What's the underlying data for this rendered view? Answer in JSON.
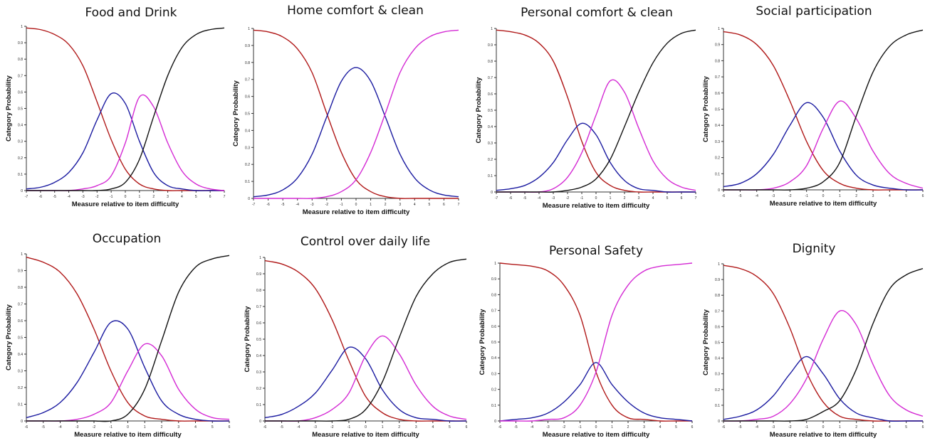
{
  "colors": {
    "cat1": "#b01818",
    "cat2": "#1a1aa0",
    "cat3": "#d42ad4",
    "cat4": "#111111"
  },
  "chart_data": [
    {
      "type": "line",
      "title": "Food and Drink",
      "xlabel": "Measure relative to item difficulty",
      "ylabel": "Category Probability",
      "xlim": [
        -7,
        7
      ],
      "ylim": [
        0,
        1
      ],
      "xticks": [
        "-7",
        "-6",
        "-5",
        "-4",
        "-3",
        "-2",
        "-1",
        "0",
        "1",
        "2",
        "3",
        "4",
        "5",
        "6",
        "7"
      ],
      "yticks": [
        "0",
        "0.1",
        "0.2",
        "0.3",
        "0.4",
        "0.5",
        "0.6",
        "0.7",
        "0.8",
        "0.9",
        "1"
      ],
      "x": [
        -7,
        -6,
        -5,
        -4,
        -3,
        -2,
        -1,
        0,
        1,
        2,
        3,
        4,
        5,
        6,
        7
      ],
      "series": [
        {
          "values": [
            0.99,
            0.98,
            0.95,
            0.89,
            0.76,
            0.54,
            0.31,
            0.13,
            0.04,
            0.01,
            0.0,
            0.0,
            0.0,
            0.0,
            0.0
          ]
        },
        {
          "values": [
            0.01,
            0.02,
            0.05,
            0.11,
            0.23,
            0.43,
            0.59,
            0.53,
            0.3,
            0.11,
            0.03,
            0.01,
            0.0,
            0.0,
            0.0
          ]
        },
        {
          "values": [
            0.0,
            0.0,
            0.0,
            0.0,
            0.01,
            0.03,
            0.09,
            0.29,
            0.57,
            0.51,
            0.29,
            0.12,
            0.04,
            0.01,
            0.0
          ]
        },
        {
          "values": [
            0.0,
            0.0,
            0.0,
            0.0,
            0.0,
            0.0,
            0.01,
            0.05,
            0.19,
            0.45,
            0.7,
            0.87,
            0.95,
            0.98,
            0.99
          ]
        }
      ]
    },
    {
      "type": "line",
      "title": "Home comfort & clean",
      "xlabel": "Measure relative to item difficulty",
      "ylabel": "Category Probability",
      "xlim": [
        -7,
        7
      ],
      "ylim": [
        0,
        1
      ],
      "xticks": [
        "-7",
        "-6",
        "-5",
        "-4",
        "-3",
        "-2",
        "-1",
        "0",
        "1",
        "2",
        "3",
        "4",
        "5",
        "6",
        "7"
      ],
      "yticks": [
        "0",
        "0.1",
        "0.2",
        "0.3",
        "0.4",
        "0.5",
        "0.6",
        "0.7",
        "0.8",
        "0.9",
        "1"
      ],
      "x": [
        -7,
        -6,
        -5,
        -4,
        -3,
        -2,
        -1,
        0,
        1,
        2,
        3,
        4,
        5,
        6,
        7
      ],
      "series": [
        {
          "values": [
            0.99,
            0.98,
            0.95,
            0.88,
            0.74,
            0.5,
            0.27,
            0.11,
            0.04,
            0.01,
            0.0,
            0.0,
            0.0,
            0.0,
            0.0
          ]
        },
        {
          "values": [
            0.01,
            0.02,
            0.05,
            0.12,
            0.26,
            0.48,
            0.69,
            0.77,
            0.69,
            0.48,
            0.26,
            0.12,
            0.05,
            0.02,
            0.01
          ]
        },
        {
          "values": [
            0.0,
            0.0,
            0.0,
            0.0,
            0.0,
            0.01,
            0.04,
            0.11,
            0.27,
            0.5,
            0.74,
            0.88,
            0.95,
            0.98,
            0.99
          ]
        }
      ]
    },
    {
      "type": "line",
      "title": "Personal comfort & clean",
      "xlabel": "Measure relative to item difficulty",
      "ylabel": "Category Probability",
      "xlim": [
        -7,
        7
      ],
      "ylim": [
        0,
        1
      ],
      "xticks": [
        "-7",
        "-6",
        "-5",
        "-4",
        "-3",
        "-2",
        "-1",
        "0",
        "1",
        "2",
        "3",
        "4",
        "5",
        "6",
        "7"
      ],
      "yticks": [
        "0",
        "0.1",
        "0.2",
        "0.3",
        "0.4",
        "0.5",
        "0.6",
        "0.7",
        "0.8",
        "0.9",
        "1"
      ],
      "x": [
        -7,
        -6,
        -5,
        -4,
        -3,
        -2,
        -1,
        0,
        1,
        2,
        3,
        4,
        5,
        6,
        7
      ],
      "series": [
        {
          "values": [
            0.99,
            0.98,
            0.96,
            0.91,
            0.8,
            0.58,
            0.31,
            0.12,
            0.04,
            0.01,
            0.0,
            0.0,
            0.0,
            0.0,
            0.0
          ]
        },
        {
          "values": [
            0.01,
            0.02,
            0.04,
            0.09,
            0.18,
            0.32,
            0.42,
            0.35,
            0.18,
            0.07,
            0.02,
            0.01,
            0.0,
            0.0,
            0.0
          ]
        },
        {
          "values": [
            0.0,
            0.0,
            0.0,
            0.0,
            0.02,
            0.09,
            0.24,
            0.47,
            0.68,
            0.61,
            0.39,
            0.19,
            0.08,
            0.03,
            0.01
          ]
        },
        {
          "values": [
            0.0,
            0.0,
            0.0,
            0.0,
            0.0,
            0.01,
            0.03,
            0.08,
            0.2,
            0.4,
            0.61,
            0.79,
            0.91,
            0.97,
            0.99
          ]
        }
      ]
    },
    {
      "type": "line",
      "title": "Social participation",
      "xlabel": "Measure relative to item difficulty",
      "ylabel": "Category Probability",
      "xlim": [
        -6,
        6
      ],
      "ylim": [
        0,
        1
      ],
      "xticks": [
        "-6",
        "-5",
        "-4",
        "-3",
        "-2",
        "-1",
        "0",
        "1",
        "2",
        "3",
        "4",
        "5",
        "6"
      ],
      "yticks": [
        "0",
        "0.1",
        "0.2",
        "0.3",
        "0.4",
        "0.5",
        "0.6",
        "0.7",
        "0.8",
        "0.9",
        "1"
      ],
      "x": [
        -6,
        -5,
        -4,
        -3,
        -2,
        -1,
        0,
        1,
        2,
        3,
        4,
        5,
        6
      ],
      "series": [
        {
          "values": [
            0.98,
            0.96,
            0.9,
            0.77,
            0.55,
            0.3,
            0.12,
            0.04,
            0.01,
            0.0,
            0.0,
            0.0,
            0.0
          ]
        },
        {
          "values": [
            0.02,
            0.04,
            0.1,
            0.22,
            0.4,
            0.54,
            0.45,
            0.24,
            0.09,
            0.03,
            0.01,
            0.0,
            0.0
          ]
        },
        {
          "values": [
            0.0,
            0.0,
            0.0,
            0.01,
            0.05,
            0.15,
            0.38,
            0.55,
            0.44,
            0.24,
            0.1,
            0.04,
            0.01
          ]
        },
        {
          "values": [
            0.0,
            0.0,
            0.0,
            0.0,
            0.0,
            0.01,
            0.05,
            0.17,
            0.46,
            0.73,
            0.89,
            0.96,
            0.99
          ]
        }
      ]
    },
    {
      "type": "line",
      "title": "Occupation",
      "xlabel": "Measure relative to item difficulty",
      "ylabel": "Category Probability",
      "xlim": [
        -6,
        6
      ],
      "ylim": [
        0,
        1
      ],
      "xticks": [
        "-6",
        "-5",
        "-4",
        "-3",
        "-2",
        "-1",
        "0",
        "1",
        "2",
        "3",
        "4",
        "5",
        "6"
      ],
      "yticks": [
        "0",
        "0.1",
        "0.2",
        "0.3",
        "0.4",
        "0.5",
        "0.6",
        "0.7",
        "0.8",
        "0.9",
        "1"
      ],
      "x": [
        -6,
        -5,
        -4,
        -3,
        -2,
        -1,
        0,
        1,
        2,
        3,
        4,
        5,
        6
      ],
      "series": [
        {
          "values": [
            0.98,
            0.95,
            0.89,
            0.76,
            0.55,
            0.3,
            0.11,
            0.03,
            0.01,
            0.0,
            0.0,
            0.0,
            0.0
          ]
        },
        {
          "values": [
            0.02,
            0.05,
            0.11,
            0.23,
            0.41,
            0.59,
            0.55,
            0.32,
            0.12,
            0.04,
            0.01,
            0.0,
            0.0
          ]
        },
        {
          "values": [
            0.0,
            0.0,
            0.0,
            0.01,
            0.04,
            0.11,
            0.3,
            0.46,
            0.39,
            0.19,
            0.07,
            0.02,
            0.01
          ]
        },
        {
          "values": [
            0.0,
            0.0,
            0.0,
            0.0,
            0.0,
            0.0,
            0.04,
            0.19,
            0.48,
            0.77,
            0.92,
            0.97,
            0.99
          ]
        }
      ]
    },
    {
      "type": "line",
      "title": "Control over daily life",
      "xlabel": "Measure relative to item difficulty",
      "ylabel": "Category Probability",
      "xlim": [
        -6,
        6
      ],
      "ylim": [
        0,
        1
      ],
      "xticks": [
        "-6",
        "-5",
        "-4",
        "-3",
        "-2",
        "-1",
        "0",
        "1",
        "2",
        "3",
        "4",
        "5",
        "6"
      ],
      "yticks": [
        "0",
        "0.1",
        "0.2",
        "0.3",
        "0.4",
        "0.5",
        "0.6",
        "0.7",
        "0.8",
        "0.9",
        "1"
      ],
      "x": [
        -6,
        -5,
        -4,
        -3,
        -2,
        -1,
        0,
        1,
        2,
        3,
        4,
        5,
        6
      ],
      "series": [
        {
          "values": [
            0.98,
            0.96,
            0.91,
            0.81,
            0.62,
            0.37,
            0.15,
            0.05,
            0.01,
            0.0,
            0.0,
            0.0,
            0.0
          ]
        },
        {
          "values": [
            0.02,
            0.04,
            0.09,
            0.17,
            0.31,
            0.45,
            0.38,
            0.19,
            0.07,
            0.02,
            0.01,
            0.0,
            0.0
          ]
        },
        {
          "values": [
            0.0,
            0.0,
            0.0,
            0.02,
            0.07,
            0.17,
            0.4,
            0.52,
            0.41,
            0.22,
            0.09,
            0.03,
            0.01
          ]
        },
        {
          "values": [
            0.0,
            0.0,
            0.0,
            0.0,
            0.0,
            0.01,
            0.07,
            0.24,
            0.51,
            0.76,
            0.9,
            0.97,
            0.99
          ]
        }
      ]
    },
    {
      "type": "line",
      "title": "Personal Safety",
      "xlabel": "Measure relative to item difficulty",
      "ylabel": "Category Probability",
      "xlim": [
        -6,
        6
      ],
      "ylim": [
        0,
        1
      ],
      "xticks": [
        "-6",
        "-5",
        "-4",
        "-3",
        "-2",
        "-1",
        "0",
        "1",
        "2",
        "3",
        "4",
        "5",
        "6"
      ],
      "yticks": [
        "0",
        "0.1",
        "0.2",
        "0.3",
        "0.4",
        "0.5",
        "0.6",
        "0.7",
        "0.8",
        "0.9",
        "1"
      ],
      "x": [
        -6,
        -5,
        -4,
        -3,
        -2,
        -1,
        0,
        1,
        2,
        3,
        4,
        5,
        6
      ],
      "series": [
        {
          "values": [
            1.0,
            0.99,
            0.98,
            0.95,
            0.86,
            0.67,
            0.31,
            0.1,
            0.02,
            0.01,
            0.0,
            0.0,
            0.0
          ]
        },
        {
          "values": [
            0.0,
            0.01,
            0.02,
            0.05,
            0.12,
            0.23,
            0.37,
            0.23,
            0.12,
            0.05,
            0.02,
            0.01,
            0.0
          ]
        },
        {
          "values": [
            0.0,
            0.0,
            0.0,
            0.01,
            0.02,
            0.1,
            0.31,
            0.67,
            0.86,
            0.95,
            0.98,
            0.99,
            1.0
          ]
        }
      ]
    },
    {
      "type": "line",
      "title": "Dignity",
      "xlabel": "Measure relative to item difficulty",
      "ylabel": "Category Probability",
      "xlim": [
        -6,
        6
      ],
      "ylim": [
        0,
        1
      ],
      "xticks": [
        "-6",
        "-5",
        "-4",
        "-3",
        "-2",
        "-1",
        "0",
        "1",
        "2",
        "3",
        "4",
        "5",
        "6"
      ],
      "yticks": [
        "0",
        "0.1",
        "0.2",
        "0.3",
        "0.4",
        "0.5",
        "0.6",
        "0.7",
        "0.8",
        "0.9",
        "1"
      ],
      "x": [
        -6,
        -5,
        -4,
        -3,
        -2,
        -1,
        0,
        1,
        2,
        3,
        4,
        5,
        6
      ],
      "series": [
        {
          "values": [
            0.99,
            0.97,
            0.92,
            0.81,
            0.59,
            0.31,
            0.12,
            0.03,
            0.01,
            0.0,
            0.0,
            0.0,
            0.0
          ]
        },
        {
          "values": [
            0.01,
            0.03,
            0.07,
            0.16,
            0.3,
            0.41,
            0.3,
            0.14,
            0.05,
            0.02,
            0.0,
            0.0,
            0.0
          ]
        },
        {
          "values": [
            0.0,
            0.0,
            0.01,
            0.03,
            0.11,
            0.27,
            0.52,
            0.7,
            0.61,
            0.36,
            0.16,
            0.07,
            0.03
          ]
        },
        {
          "values": [
            0.0,
            0.0,
            0.0,
            0.0,
            0.0,
            0.01,
            0.06,
            0.13,
            0.33,
            0.62,
            0.84,
            0.93,
            0.97
          ]
        }
      ]
    }
  ]
}
